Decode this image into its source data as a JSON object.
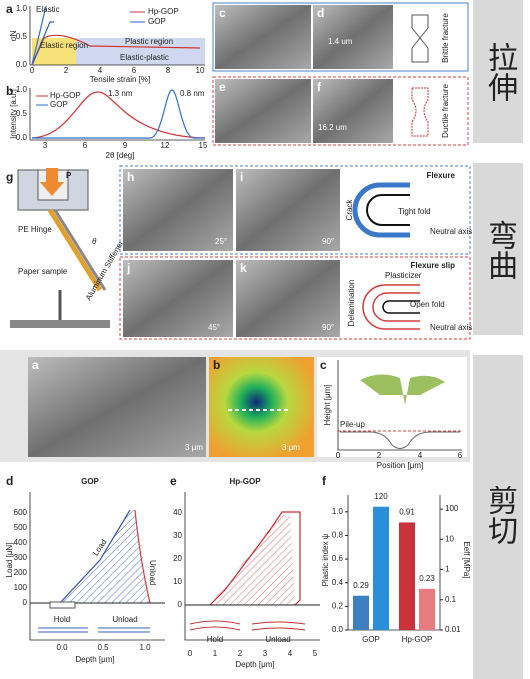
{
  "side_labels": [
    "拉伸",
    "弯曲",
    "剪切"
  ],
  "tensile": {
    "a": {
      "label": "a",
      "y_label": "σN",
      "x_label": "Tensile strain [%]",
      "legend": [
        "Elastic",
        "Hp-GOP",
        "GOP"
      ],
      "regions": [
        "Elastic region",
        "Plastic region",
        "Elastic-plastic"
      ],
      "xticks": [
        "0",
        "2",
        "4",
        "6",
        "8",
        "10"
      ],
      "yticks": [
        "0.0",
        "0.5",
        "1.0"
      ]
    },
    "b": {
      "label": "b",
      "y_label": "Intensity [a.u.]",
      "x_label": "2θ [deg]",
      "legend": [
        "Hp-GOP",
        "GOP"
      ],
      "peaks": [
        "1.3 nm",
        "0.8 nm"
      ],
      "xticks": [
        "3",
        "6",
        "9",
        "12",
        "15"
      ],
      "yticks": [
        "0.0",
        "0.5",
        "1.0"
      ]
    },
    "images": [
      "c",
      "d",
      "e",
      "f"
    ],
    "scale_d": "1.4 um",
    "scale_f": "16.2 um",
    "brittle": "Brittle fracture",
    "ductile": "Ductile fracture"
  },
  "bending": {
    "g": {
      "label": "g",
      "load": "P",
      "hinge": "PE Hinge",
      "angle": "θ",
      "sample": "Paper sample",
      "stiffener": "Aluminum Stiffener"
    },
    "images": [
      "h",
      "i",
      "j",
      "k"
    ],
    "angles": [
      "25°",
      "90°",
      "45°",
      "90°"
    ],
    "flexure": {
      "title": "Flexure",
      "crack": "Crack",
      "fold": "Tight fold",
      "axis": "Neutral axis"
    },
    "slip": {
      "title": "Flexure slip",
      "plasticizer": "Plasticizer",
      "delamination": "Delamination",
      "fold": "Open fold",
      "axis": "Neutral axis"
    }
  },
  "shear": {
    "images": [
      "a",
      "b",
      "c"
    ],
    "scale_a": "3 μm",
    "scale_b": "3 μm",
    "c": {
      "y_label": "Height [μm]",
      "x_label": "Position [μm]",
      "pileup": "Pile-up",
      "xticks": [
        "0",
        "2",
        "4",
        "6"
      ]
    },
    "d": {
      "label": "d",
      "title": "GOP",
      "y_label": "Load [μN]",
      "x_label": "Depth [μm]",
      "load": "Load",
      "unload": "Unload",
      "hold": "Hold",
      "unload2": "Unload",
      "yticks": [
        "0",
        "100",
        "200",
        "300",
        "400",
        "500",
        "600"
      ],
      "xticks": [
        "0.0",
        "0.5",
        "1.0"
      ]
    },
    "e": {
      "label": "e",
      "title": "Hp-GOP",
      "x_label": "Depth [μm]",
      "hold": "Hold",
      "unload": "Unload",
      "yticks": [
        "0",
        "10",
        "20",
        "30",
        "40"
      ],
      "xticks": [
        "0",
        "1",
        "2",
        "3",
        "4",
        "5"
      ]
    },
    "f": {
      "label": "f",
      "y_label": "Plastic index ψ",
      "y2_label": "Eeff [MPa]",
      "categories": [
        "GOP",
        "Hp-GOP"
      ],
      "psi": [
        0.29,
        0.91
      ],
      "e_eff": [
        120,
        0.23
      ],
      "psi_colors": [
        "#3d7fc1",
        "#c8323a"
      ],
      "e_colors": [
        "#2a8fd8",
        "#e87a80"
      ],
      "ylim": [
        0,
        1.1
      ],
      "yticks": [
        {
          "value": 0,
          "label": "0.0"
        },
        {
          "value": 0.2,
          "label": "0.2"
        },
        {
          "value": 0.4,
          "label": "0.4"
        },
        {
          "value": 0.6,
          "label": "0.6"
        },
        {
          "value": 0.8,
          "label": "0.8"
        },
        {
          "value": 1,
          "label": "1.0"
        }
      ],
      "y2lim": [
        0.01,
        200
      ],
      "y2ticks": [
        0.01,
        0.1,
        1,
        10,
        100
      ],
      "y2_log": true
    }
  }
}
